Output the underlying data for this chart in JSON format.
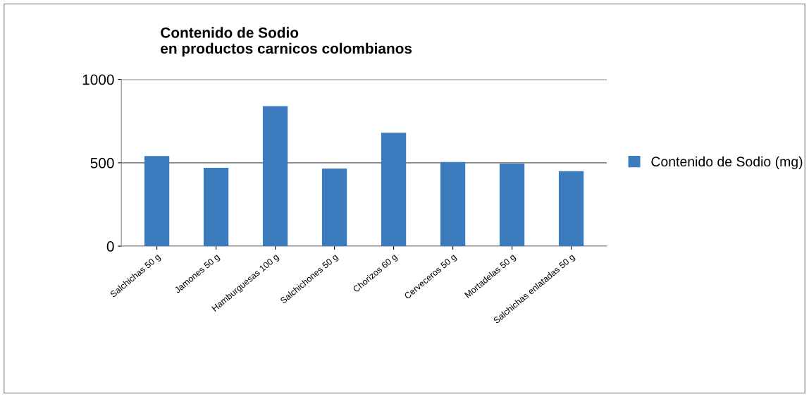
{
  "chart_data": {
    "type": "bar",
    "title": "Contenido de Sodio\nen productos carnicos colombianos",
    "categories": [
      "Salchichas 50 g",
      "Jamones 50 g",
      "Hamburguesas 100 g",
      "Salchichones 50 g",
      "Chorizos 60 g",
      "Cerveceros 50 g",
      "Mortadelas 50 g",
      "Salchichas enlatadas 50 g"
    ],
    "series": [
      {
        "name": "Contenido de Sodio (mg)",
        "color": "#3d7bbf",
        "values": [
          540,
          470,
          840,
          465,
          680,
          505,
          495,
          450
        ]
      }
    ],
    "ylim": [
      0,
      1000
    ],
    "yticks": [
      0,
      500,
      1000
    ],
    "grid": "y",
    "legend": "right"
  }
}
